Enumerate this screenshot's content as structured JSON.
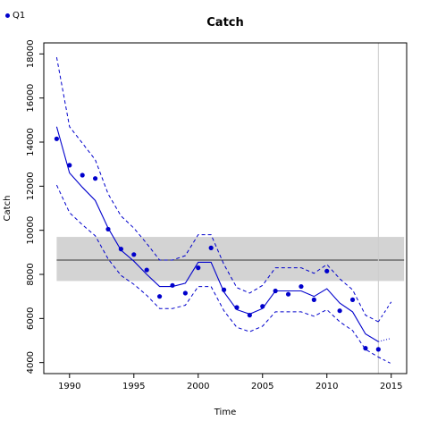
{
  "chart_data": {
    "type": "line",
    "title": "Catch",
    "xlabel": "Time",
    "ylabel": "Catch",
    "xlim": [
      1988,
      2016.2
    ],
    "ylim": [
      3500,
      18500
    ],
    "xticks": [
      1990,
      1995,
      2000,
      2005,
      2010,
      2015
    ],
    "yticks": [
      4000,
      6000,
      8000,
      10000,
      12000,
      14000,
      16000,
      18000
    ],
    "grid": false,
    "legend": {
      "position": "top-left",
      "entries": [
        {
          "label": "Q1",
          "color": "#0000cc",
          "marker": "point"
        }
      ]
    },
    "reference_band": {
      "x": [
        1989,
        2016
      ],
      "lower": 7700,
      "upper": 9700,
      "center": 8650,
      "color": "#d3d3d3"
    },
    "vertical_line": {
      "x": 2014,
      "color": "#cccccc"
    },
    "series": [
      {
        "name": "Q1",
        "kind": "points",
        "color": "#0000cc",
        "x": [
          1989,
          1990,
          1991,
          1992,
          1993,
          1994,
          1995,
          1996,
          1997,
          1998,
          1999,
          2000,
          2001,
          2002,
          2003,
          2004,
          2005,
          2006,
          2007,
          2008,
          2009,
          2010,
          2011,
          2012,
          2013,
          2014
        ],
        "values": [
          14150,
          12950,
          12500,
          12350,
          10050,
          9150,
          8900,
          8200,
          7000,
          7500,
          7150,
          8300,
          9200,
          7300,
          6500,
          6150,
          6550,
          7250,
          7100,
          7450,
          6850,
          8150,
          6350,
          6850,
          4650,
          4600
        ]
      },
      {
        "kind": "line",
        "style": "solid",
        "color": "#0000cc",
        "x": [
          1989,
          1990,
          1991,
          1992,
          1993,
          1994,
          1995,
          1996,
          1997,
          1998,
          1999,
          2000,
          2001,
          2002,
          2003,
          2004,
          2005,
          2006,
          2007,
          2008,
          2009,
          2010,
          2011,
          2012,
          2013,
          2014
        ],
        "values": [
          14700,
          12600,
          11950,
          11350,
          10100,
          9100,
          8600,
          8000,
          7450,
          7450,
          7600,
          8550,
          8550,
          7200,
          6400,
          6200,
          6450,
          7250,
          7250,
          7250,
          7000,
          7350,
          6700,
          6300,
          5300,
          4950
        ]
      },
      {
        "kind": "line",
        "style": "dashed",
        "color": "#0000cc",
        "x": [
          1989,
          1990,
          1991,
          1992,
          1993,
          1994,
          1995,
          1996,
          1997,
          1998,
          1999,
          2000,
          2001,
          2002,
          2003,
          2004,
          2005,
          2006,
          2007,
          2008,
          2009,
          2010,
          2011,
          2012,
          2013,
          2014
        ],
        "values": [
          17850,
          14700,
          13950,
          13200,
          11650,
          10650,
          10100,
          9400,
          8650,
          8650,
          8850,
          9800,
          9800,
          8450,
          7400,
          7150,
          7500,
          8300,
          8300,
          8300,
          8050,
          8450,
          7800,
          7300,
          6150,
          5850
        ]
      },
      {
        "kind": "line",
        "style": "dashed",
        "color": "#0000cc",
        "x": [
          1989,
          1990,
          1991,
          1992,
          1993,
          1994,
          1995,
          1996,
          1997,
          1998,
          1999,
          2000,
          2001,
          2002,
          2003,
          2004,
          2005,
          2006,
          2007,
          2008,
          2009,
          2010,
          2011,
          2012,
          2013,
          2014
        ],
        "values": [
          12050,
          10800,
          10250,
          9750,
          8700,
          7950,
          7550,
          7050,
          6450,
          6450,
          6600,
          7450,
          7450,
          6350,
          5600,
          5400,
          5650,
          6300,
          6300,
          6300,
          6100,
          6400,
          5850,
          5450,
          4600,
          4250
        ]
      },
      {
        "kind": "line",
        "style": "dotted",
        "color": "#0000cc",
        "x": [
          2014,
          2015
        ],
        "values": [
          4950,
          5100
        ]
      },
      {
        "kind": "line",
        "style": "dashed-thin",
        "color": "#0000cc",
        "x": [
          2014,
          2015
        ],
        "values": [
          5850,
          6750
        ]
      },
      {
        "kind": "line",
        "style": "dashed-thin",
        "color": "#0000cc",
        "x": [
          2014,
          2015
        ],
        "values": [
          4250,
          3950
        ]
      }
    ]
  }
}
